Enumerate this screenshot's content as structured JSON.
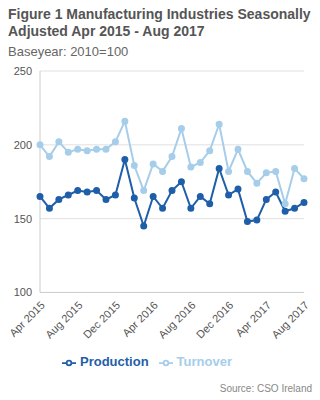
{
  "chart_data": {
    "type": "line",
    "title": "Figure 1 Manufacturing Industries Seasonally Adjusted Apr 2015 - Aug 2017",
    "subtitle": "Baseyear: 2010=100",
    "source": "Source: CSO Ireland",
    "categories": [
      "Apr 2015",
      null,
      null,
      null,
      "Aug 2015",
      null,
      null,
      null,
      "Dec 2015",
      null,
      null,
      null,
      "Apr 2016",
      null,
      null,
      null,
      "Aug 2016",
      null,
      null,
      null,
      "Dec 2016",
      null,
      null,
      null,
      "Apr 2017",
      null,
      null,
      null,
      "Aug 2017"
    ],
    "series": [
      {
        "name": "Production",
        "color": "#1f5ea8",
        "values": [
          165,
          157,
          163,
          166,
          169,
          168,
          169,
          163,
          166,
          190,
          164,
          145,
          165,
          157,
          169,
          175,
          157,
          165,
          160,
          184,
          166,
          170,
          148,
          149,
          163,
          168,
          155,
          157,
          161
        ]
      },
      {
        "name": "Turnover",
        "color": "#a6cdea",
        "values": [
          200,
          192,
          202,
          195,
          197,
          196,
          197,
          197,
          202,
          216,
          186,
          169,
          187,
          182,
          192,
          211,
          185,
          188,
          196,
          214,
          182,
          197,
          182,
          174,
          181,
          182,
          160,
          184,
          177
        ]
      }
    ],
    "ylim": [
      100,
      250
    ],
    "yticks": [
      100,
      150,
      200,
      250
    ],
    "grid": true,
    "legend": "bottom",
    "marker": "circle"
  }
}
